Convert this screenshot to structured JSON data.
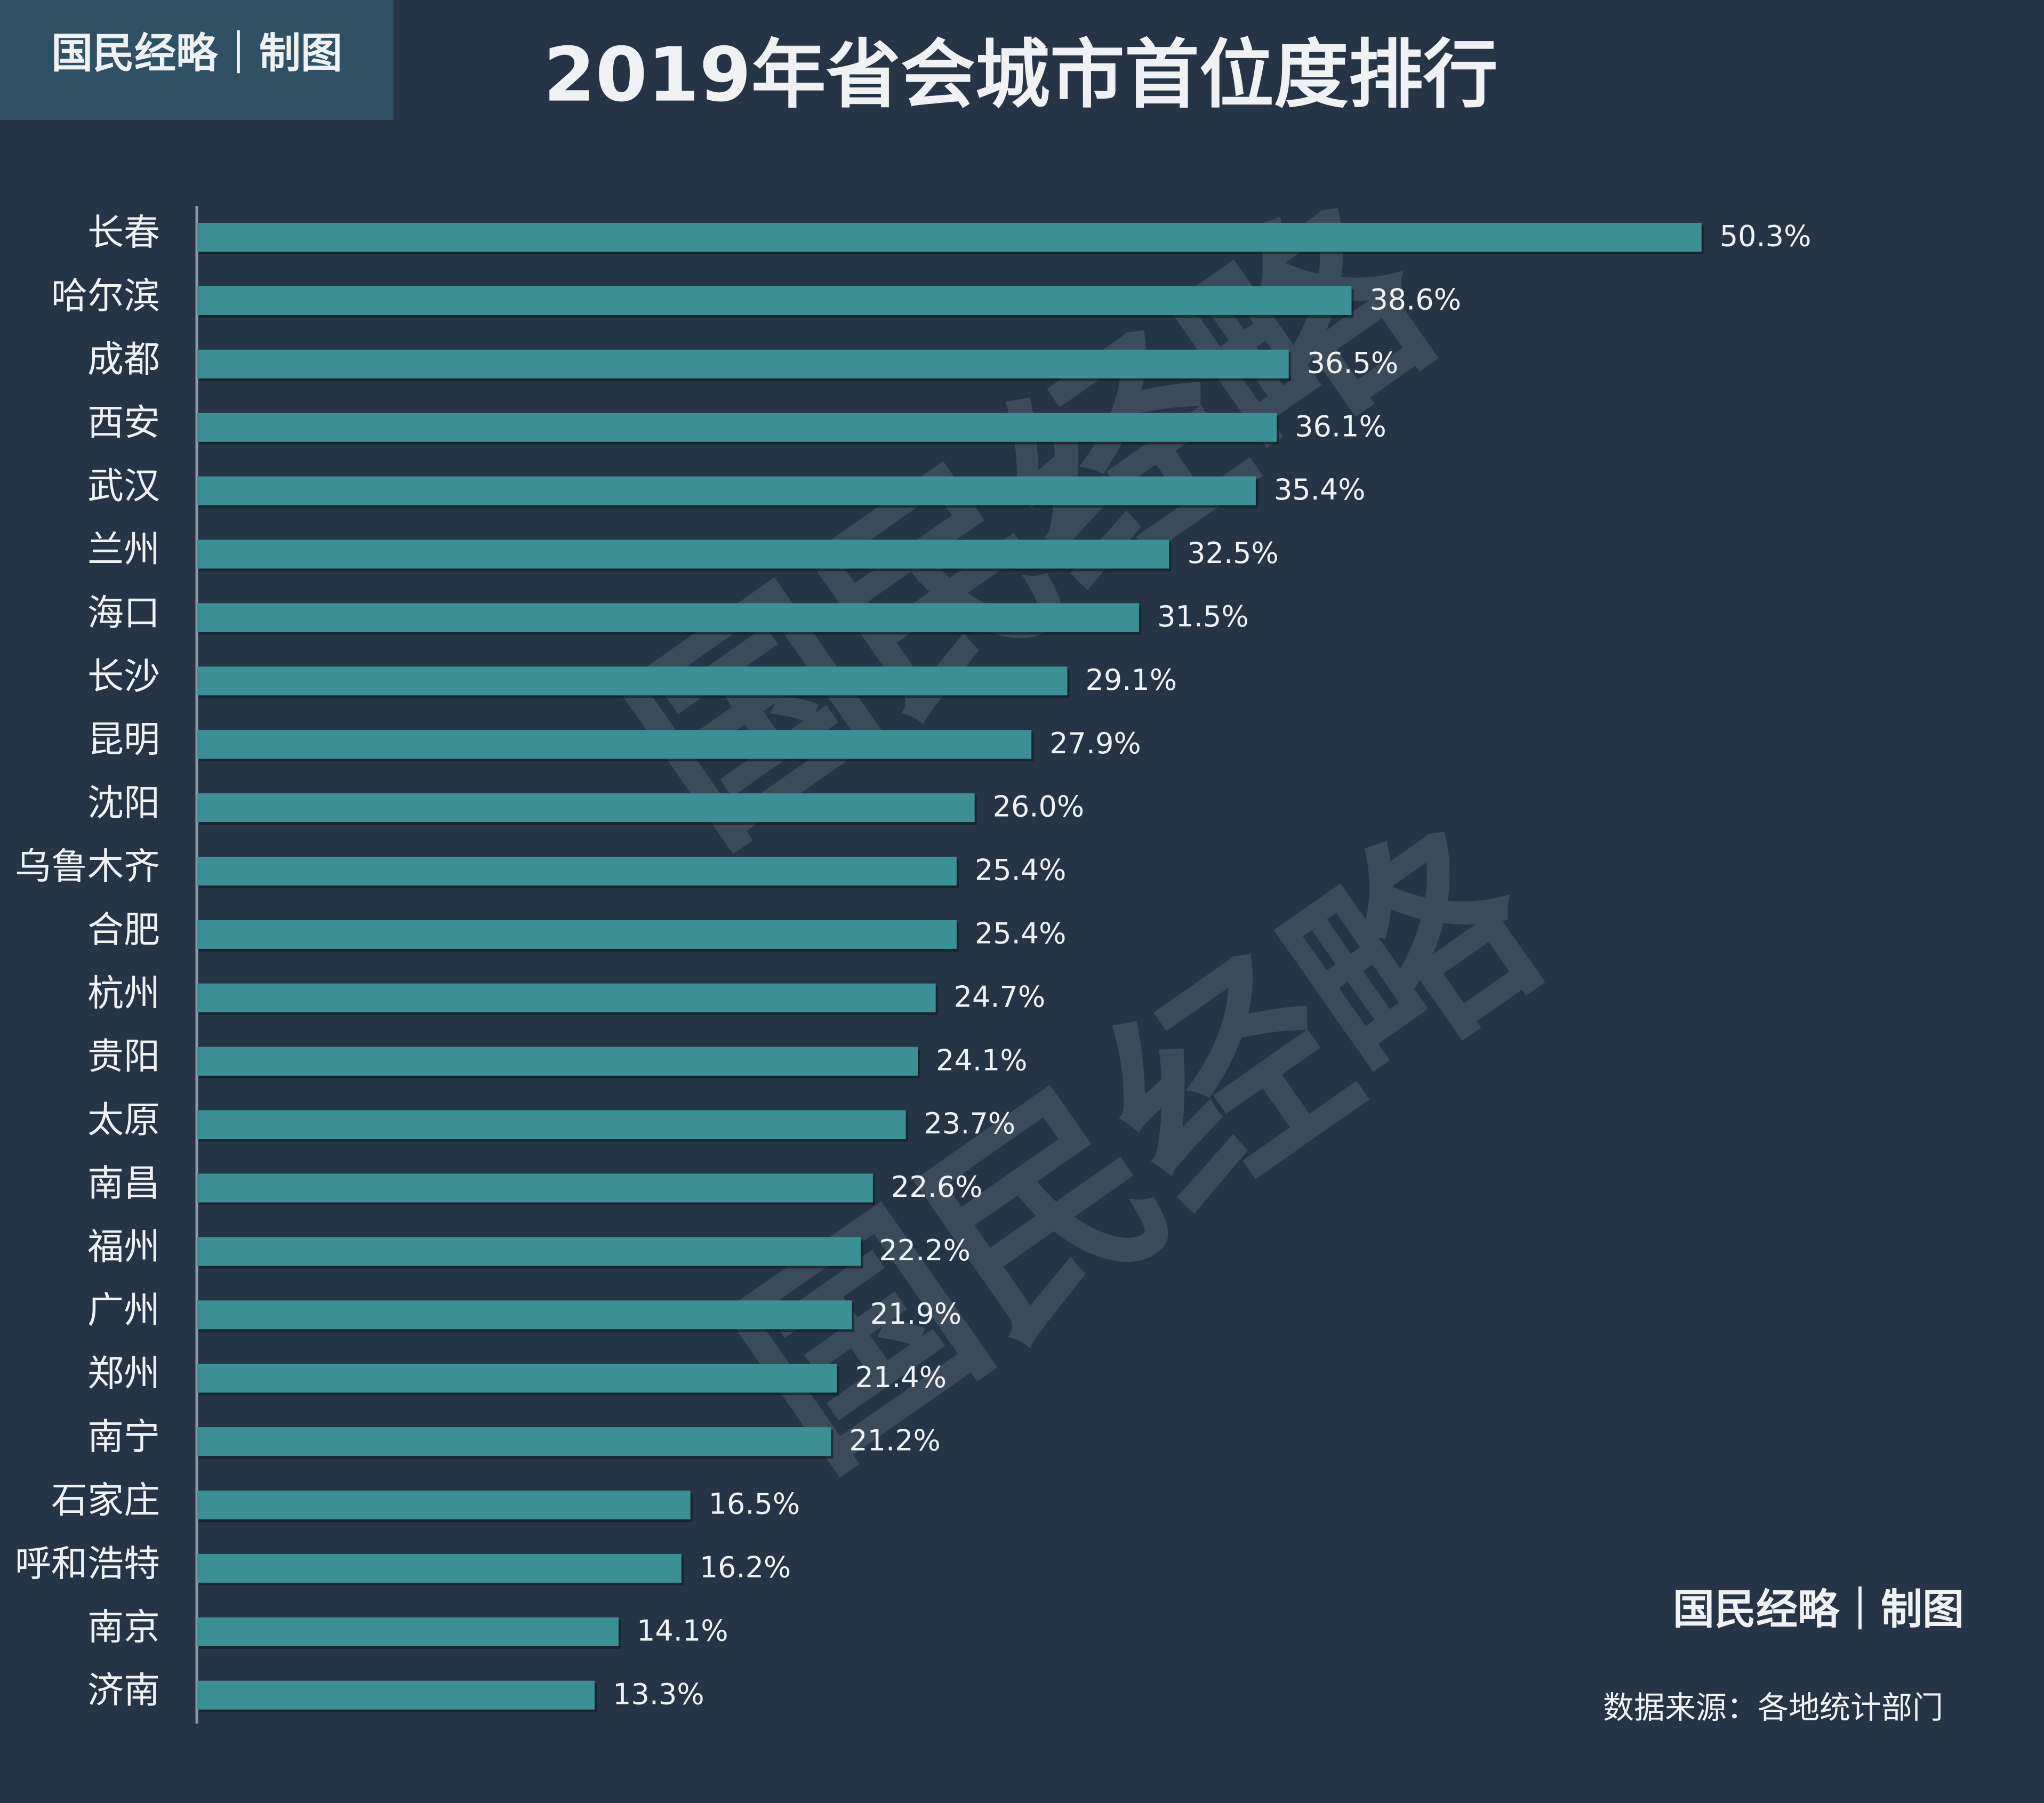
{
  "chart_data": {
    "type": "bar",
    "orientation": "horizontal",
    "title": "2019年省会城市首位度排行",
    "brand": "国民经略｜制图",
    "watermark": "国民经略",
    "source": "数据来源：各地统计部门",
    "color": "#3a9095",
    "categories": [
      "长春",
      "哈尔滨",
      "成都",
      "西安",
      "武汉",
      "兰州",
      "海口",
      "长沙",
      "昆明",
      "沈阳",
      "乌鲁木齐",
      "合肥",
      "杭州",
      "贵阳",
      "太原",
      "南昌",
      "福州",
      "广州",
      "郑州",
      "南宁",
      "石家庄",
      "呼和浩特",
      "南京",
      "济南"
    ],
    "values": [
      50.3,
      38.6,
      36.5,
      36.1,
      35.4,
      32.5,
      31.5,
      29.1,
      27.9,
      26.0,
      25.4,
      25.4,
      24.7,
      24.1,
      23.7,
      22.6,
      22.2,
      21.9,
      21.4,
      21.2,
      16.5,
      16.2,
      14.1,
      13.3
    ],
    "value_labels": [
      "50.3%",
      "38.6%",
      "36.5%",
      "36.1%",
      "35.4%",
      "32.5%",
      "31.5%",
      "29.1%",
      "27.9%",
      "26.0%",
      "25.4%",
      "25.4%",
      "24.7%",
      "24.1%",
      "23.7%",
      "22.6%",
      "22.2%",
      "21.9%",
      "21.4%",
      "21.2%",
      "16.5%",
      "16.2%",
      "14.1%",
      "13.3%"
    ]
  }
}
